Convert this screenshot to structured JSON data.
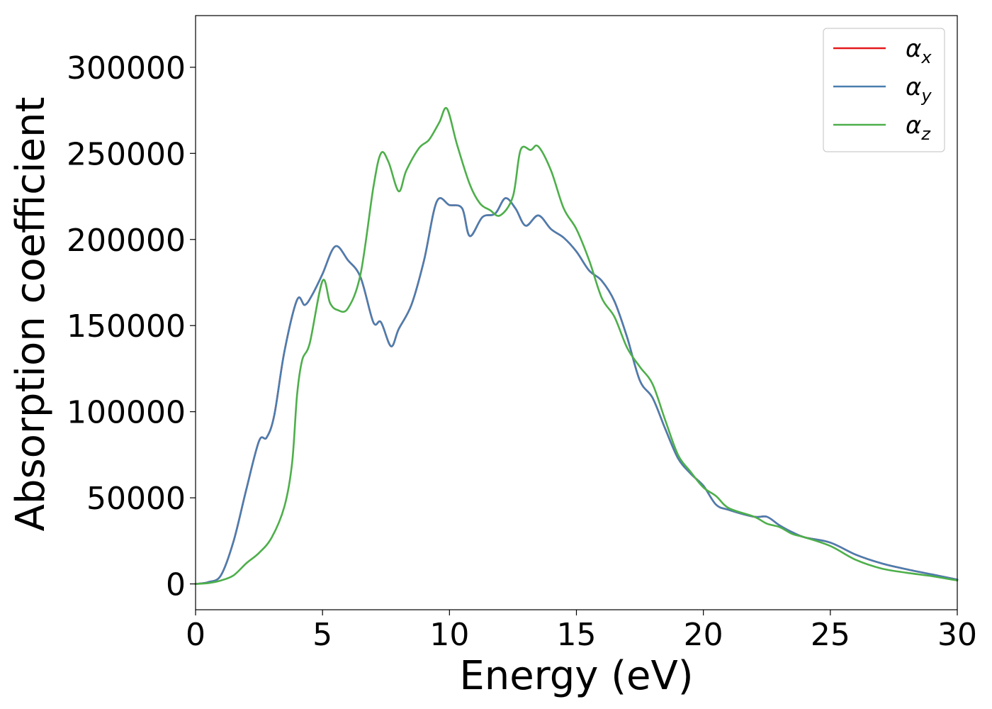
{
  "chart_data": {
    "type": "line",
    "title": "",
    "xlabel": "Energy (eV)",
    "ylabel": "Absorption coefficient",
    "xlim": [
      0,
      30
    ],
    "ylim": [
      -15000,
      330000
    ],
    "xticks": [
      0,
      5,
      10,
      15,
      20,
      25,
      30
    ],
    "yticks": [
      0,
      50000,
      100000,
      150000,
      200000,
      250000,
      300000
    ],
    "grid": false,
    "legend": "top-right",
    "series": [
      {
        "name": "α_x",
        "label_base": "α",
        "label_sub": "x",
        "color": "#e41a1c",
        "x": [
          0,
          0.5,
          1,
          1.5,
          2,
          2.5,
          2.8,
          3.1,
          3.5,
          4,
          4.3,
          4.6,
          5,
          5.5,
          6,
          6.5,
          7,
          7.3,
          7.7,
          8,
          8.5,
          9,
          9.5,
          10,
          10.5,
          10.8,
          11.3,
          11.8,
          12.2,
          12.6,
          13,
          13.5,
          14,
          14.5,
          15,
          15.5,
          16,
          16.5,
          17,
          17.5,
          18,
          18.5,
          19,
          19.5,
          20,
          20.5,
          21,
          22,
          22.5,
          23,
          23.5,
          24,
          25,
          26,
          27,
          28,
          29,
          30
        ],
        "values": [
          0,
          1000,
          5000,
          25000,
          55000,
          83000,
          85000,
          98000,
          135000,
          165000,
          162000,
          168000,
          180000,
          196000,
          188000,
          178000,
          152000,
          152000,
          138000,
          148000,
          162000,
          188000,
          222000,
          220000,
          218000,
          202000,
          213000,
          215000,
          224000,
          218000,
          208000,
          214000,
          206000,
          201000,
          193000,
          182000,
          176000,
          164000,
          143000,
          118000,
          108000,
          90000,
          73000,
          64000,
          57000,
          46000,
          43000,
          39000,
          39000,
          34000,
          30000,
          27000,
          24000,
          17000,
          12000,
          8500,
          5500,
          2500
        ]
      },
      {
        "name": "α_y",
        "label_base": "α",
        "label_sub": "y",
        "color": "#4a7eb0",
        "x": [
          0,
          0.5,
          1,
          1.5,
          2,
          2.5,
          2.8,
          3.1,
          3.5,
          4,
          4.3,
          4.6,
          5,
          5.5,
          6,
          6.5,
          7,
          7.3,
          7.7,
          8,
          8.5,
          9,
          9.5,
          10,
          10.5,
          10.8,
          11.3,
          11.8,
          12.2,
          12.6,
          13,
          13.5,
          14,
          14.5,
          15,
          15.5,
          16,
          16.5,
          17,
          17.5,
          18,
          18.5,
          19,
          19.5,
          20,
          20.5,
          21,
          22,
          22.5,
          23,
          23.5,
          24,
          25,
          26,
          27,
          28,
          29,
          30
        ],
        "values": [
          0,
          1000,
          5000,
          25000,
          55000,
          83000,
          85000,
          98000,
          135000,
          165000,
          162000,
          168000,
          180000,
          196000,
          188000,
          178000,
          152000,
          152000,
          138000,
          148000,
          162000,
          188000,
          222000,
          220000,
          218000,
          202000,
          213000,
          215000,
          224000,
          218000,
          208000,
          214000,
          206000,
          201000,
          193000,
          182000,
          176000,
          164000,
          143000,
          118000,
          108000,
          90000,
          73000,
          64000,
          57000,
          46000,
          43000,
          39000,
          39000,
          34000,
          30000,
          27000,
          24000,
          17000,
          12000,
          8500,
          5500,
          2500
        ]
      },
      {
        "name": "α_z",
        "label_base": "α",
        "label_sub": "z",
        "color": "#4daf4a",
        "x": [
          0,
          0.5,
          1,
          1.5,
          2,
          2.5,
          3,
          3.5,
          3.8,
          4,
          4.2,
          4.5,
          5,
          5.3,
          5.6,
          6,
          6.5,
          7,
          7.3,
          7.6,
          8,
          8.3,
          8.8,
          9.2,
          9.6,
          9.9,
          10.3,
          10.8,
          11.2,
          11.6,
          12,
          12.5,
          12.8,
          13.2,
          13.5,
          14,
          14.5,
          15,
          15.5,
          16,
          16.5,
          17,
          17.5,
          18,
          18.5,
          19,
          19.5,
          20,
          20.5,
          21,
          22,
          22.5,
          23,
          23.5,
          24,
          25,
          26,
          27,
          28,
          29,
          30
        ],
        "values": [
          0,
          500,
          2000,
          5000,
          12000,
          18000,
          27000,
          45000,
          70000,
          110000,
          130000,
          140000,
          176000,
          163000,
          159000,
          160000,
          180000,
          230000,
          250000,
          245000,
          228000,
          240000,
          253000,
          258000,
          268000,
          276000,
          255000,
          232000,
          221000,
          217000,
          214000,
          225000,
          252000,
          252000,
          254000,
          240000,
          218000,
          206000,
          188000,
          166000,
          155000,
          137000,
          126000,
          116000,
          95000,
          75000,
          65000,
          56000,
          51000,
          44000,
          39000,
          35000,
          33000,
          29000,
          27000,
          22000,
          14000,
          9000,
          6500,
          4500,
          2000
        ]
      }
    ]
  }
}
